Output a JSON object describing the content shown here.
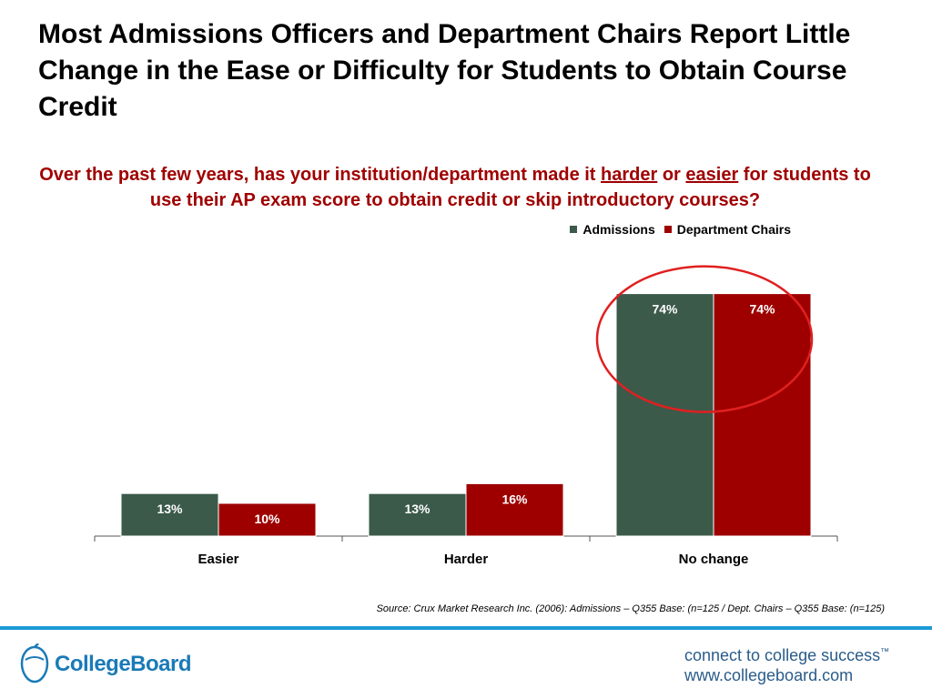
{
  "title": "Most Admissions Officers and Department Chairs Report Little Change in the Ease or Difficulty for Students to Obtain Course Credit",
  "question": {
    "part1": "Over the past few years, has your institution/department made it ",
    "harder": "harder",
    "or": " or ",
    "easier": "easier",
    "part2": " for students to use their AP exam score to obtain credit or skip introductory courses?"
  },
  "colors": {
    "admissions": "#3b5a4a",
    "chairs": "#9e0000",
    "accent_line": "#1e9ad6",
    "circle": "#e02020"
  },
  "chart_data": {
    "type": "bar",
    "categories": [
      "Easier",
      "Harder",
      "No change"
    ],
    "series": [
      {
        "name": "Admissions",
        "values": [
          13,
          13,
          74
        ],
        "labels": [
          "13%",
          "13%",
          "74%"
        ]
      },
      {
        "name": "Department Chairs",
        "values": [
          10,
          16,
          74
        ],
        "labels": [
          "10%",
          "16%",
          "74%"
        ]
      }
    ],
    "ylim": [
      0,
      90
    ],
    "legend_position": "top-right",
    "grid": false,
    "annotation": "red circle around No change bars"
  },
  "source": "Source: Crux Market Research Inc. (2006): Admissions – Q355 Base: (n=125 / Dept. Chairs – Q355 Base: (n=125)",
  "footer": {
    "logo": "CollegeBoard",
    "tagline1": "connect to college success",
    "tm": "™",
    "tagline2": "www.collegeboard.com"
  }
}
